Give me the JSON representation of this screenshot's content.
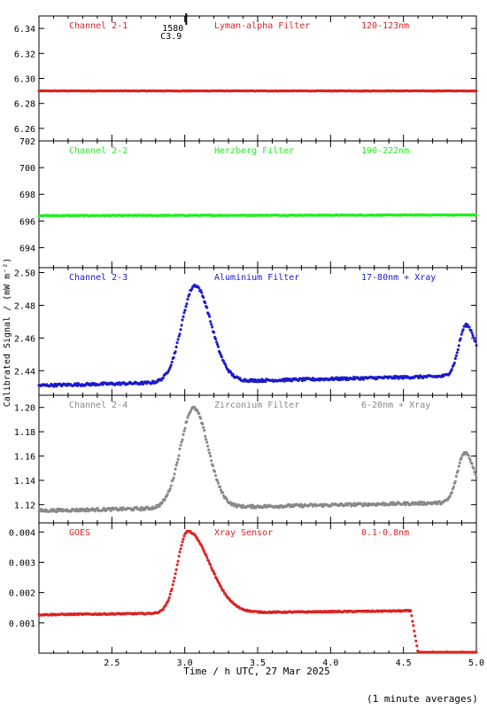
{
  "x_axis": {
    "label": "Time / h UTC, 27 Mar 2025",
    "range": [
      2.0,
      5.0
    ],
    "ticks": [
      "2.5",
      "3.0",
      "3.5",
      "4.0",
      "4.5",
      "5.0"
    ]
  },
  "y_axis_label": "Calibrated Signal / (mW m⁻²)",
  "footer_note": "(1 minute averages)",
  "flare_marker": {
    "time": 3.01,
    "label_top": "1580",
    "label_bottom": "C3.9"
  },
  "chart_data": [
    {
      "type": "scatter",
      "channel": "Channel 2-1",
      "filter": "Lyman-alpha Filter",
      "band": "120-123nm",
      "color": "#dd2222",
      "ylim": [
        6.25,
        6.35
      ],
      "yticks": [
        "6.26",
        "6.28",
        "6.30",
        "6.32",
        "6.34"
      ],
      "yticks_val": [
        6.26,
        6.28,
        6.3,
        6.32,
        6.34
      ],
      "profile": {
        "base_start": 6.29,
        "base_end": 6.29,
        "noise": 0.0002,
        "peaks": []
      },
      "dropout": null
    },
    {
      "type": "scatter",
      "channel": "Channel 2-2",
      "filter": "Herzberg Filter",
      "band": "190-222nm",
      "color": "#22ee22",
      "ylim": [
        692.5,
        702.0
      ],
      "yticks": [
        "694",
        "696",
        "698",
        "700",
        "702"
      ],
      "yticks_val": [
        694,
        696,
        698,
        700,
        702
      ],
      "profile": {
        "base_start": 696.4,
        "base_end": 696.45,
        "noise": 0.03,
        "peaks": []
      },
      "dropout": null
    },
    {
      "type": "scatter",
      "channel": "Channel 2-3",
      "filter": "Aluminium Filter",
      "band": "17-80nm + Xray",
      "color": "#1a1acc",
      "ylim": [
        2.425,
        2.503
      ],
      "yticks": [
        "2.44",
        "2.46",
        "2.48",
        "2.50"
      ],
      "yticks_val": [
        2.44,
        2.46,
        2.48,
        2.5
      ],
      "profile": {
        "base_start": 2.431,
        "base_end": 2.437,
        "noise": 0.0008,
        "peaks": [
          {
            "t": 3.07,
            "amp": 0.059,
            "rise": 0.09,
            "decay": 0.11
          },
          {
            "t": 4.93,
            "amp": 0.031,
            "rise": 0.05,
            "decay": 0.07
          }
        ]
      },
      "dropout": null
    },
    {
      "type": "scatter",
      "channel": "Channel 2-4",
      "filter": "Zirconium Filter",
      "band": "6-20nm + Xray",
      "color": "#888888",
      "ylim": [
        1.105,
        1.21
      ],
      "yticks": [
        "1.12",
        "1.14",
        "1.16",
        "1.18",
        "1.20"
      ],
      "yticks_val": [
        1.12,
        1.14,
        1.16,
        1.18,
        1.2
      ],
      "profile": {
        "base_start": 1.115,
        "base_end": 1.122,
        "noise": 0.0012,
        "peaks": [
          {
            "t": 3.06,
            "amp": 0.082,
            "rise": 0.09,
            "decay": 0.1
          },
          {
            "t": 4.92,
            "amp": 0.041,
            "rise": 0.05,
            "decay": 0.07
          }
        ]
      },
      "dropout": null
    },
    {
      "type": "scatter",
      "channel": "GOES",
      "filter": "Xray Sensor",
      "band": "0.1-0.8nm",
      "color": "#dd2222",
      "ylim": [
        0.0,
        0.0043
      ],
      "yticks": [
        "0.001",
        "0.002",
        "0.003",
        "0.004"
      ],
      "yticks_val": [
        0.001,
        0.002,
        0.003,
        0.004
      ],
      "profile": {
        "base_start": 0.00127,
        "base_end": 0.00142,
        "noise": 2e-05,
        "peaks": [
          {
            "t": 3.02,
            "amp": 0.0027,
            "rise": 0.07,
            "decay": 0.15
          }
        ]
      },
      "dropout": {
        "start": 4.55,
        "value": 2e-05
      }
    }
  ]
}
